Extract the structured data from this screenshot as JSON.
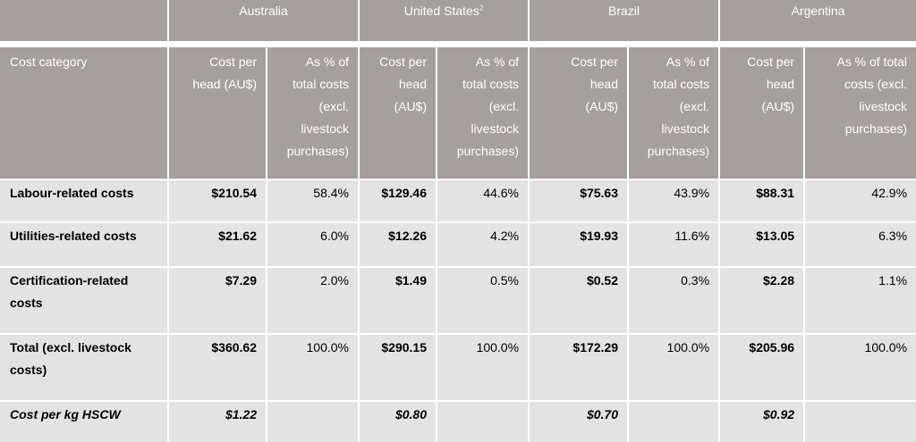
{
  "countries": [
    {
      "name": "Australia"
    },
    {
      "name": "United States",
      "sup": "2"
    },
    {
      "name": "Brazil"
    },
    {
      "name": "Argentina"
    }
  ],
  "column_headers": {
    "category": "Cost category",
    "cols": [
      "Cost per\nhead (AU$)",
      "As % of\ntotal costs\n(excl.\nlivestock\npurchases)",
      "Cost per\nhead\n(AU$)",
      "As % of\ntotal costs\n(excl.\nlivestock\npurchases)",
      "Cost per\nhead\n(AU$)",
      "As % of\ntotal costs\n(excl.\nlivestock\npurchases)",
      "Cost per\nhead\n(AU$)",
      "As % of total\ncosts (excl.\nlivestock\npurchases)"
    ]
  },
  "rows": [
    {
      "category": "Labour-related costs",
      "values": [
        "$210.54",
        "58.4%",
        "$129.46",
        "44.6%",
        "$75.63",
        "43.9%",
        "$88.31",
        "42.9%"
      ]
    },
    {
      "category": "Utilities-related costs",
      "values": [
        "$21.62",
        "6.0%",
        "$12.26",
        "4.2%",
        "$19.93",
        "11.6%",
        "$13.05",
        "6.3%"
      ]
    },
    {
      "category": "Certification-related costs",
      "values": [
        "$7.29",
        "2.0%",
        "$1.49",
        "0.5%",
        "$0.52",
        "0.3%",
        "$2.28",
        "1.1%"
      ]
    },
    {
      "category": "Total (excl. livestock costs)",
      "values": [
        "$360.62",
        "100.0%",
        "$290.15",
        "100.0%",
        "$172.29",
        "100.0%",
        "$205.96",
        "100.0%"
      ]
    },
    {
      "category": "Cost per kg HSCW",
      "values": [
        "$1.22",
        "",
        "$0.80",
        "",
        "$0.70",
        "",
        "$0.92",
        ""
      ]
    }
  ]
}
